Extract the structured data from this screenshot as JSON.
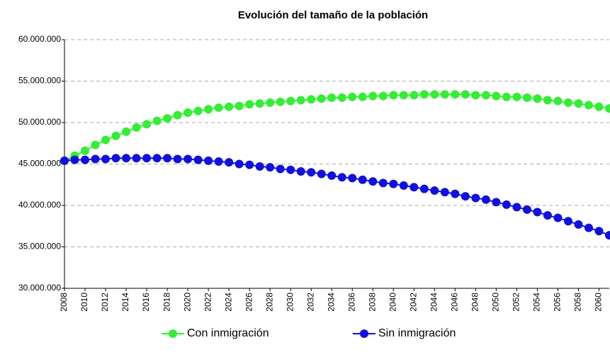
{
  "chart_data": {
    "type": "line",
    "title": "Evolución del tamaño de la población",
    "x": [
      2008,
      2009,
      2010,
      2011,
      2012,
      2013,
      2014,
      2015,
      2016,
      2017,
      2018,
      2019,
      2020,
      2021,
      2022,
      2023,
      2024,
      2025,
      2026,
      2027,
      2028,
      2029,
      2030,
      2031,
      2032,
      2033,
      2034,
      2035,
      2036,
      2037,
      2038,
      2039,
      2040,
      2041,
      2042,
      2043,
      2044,
      2045,
      2046,
      2047,
      2048,
      2049,
      2050,
      2051,
      2052,
      2053,
      2054,
      2055,
      2056,
      2057,
      2058,
      2059,
      2060,
      2061
    ],
    "series": [
      {
        "name": "Con inmigración",
        "color": "#33ee33",
        "values": [
          45400000,
          46000000,
          46600000,
          47300000,
          47900000,
          48400000,
          48900000,
          49400000,
          49800000,
          50200000,
          50500000,
          50900000,
          51200000,
          51400000,
          51600000,
          51800000,
          51900000,
          52000000,
          52200000,
          52300000,
          52400000,
          52500000,
          52600000,
          52700000,
          52800000,
          52900000,
          53000000,
          53000000,
          53100000,
          53100000,
          53200000,
          53200000,
          53300000,
          53300000,
          53300000,
          53400000,
          53400000,
          53400000,
          53400000,
          53400000,
          53300000,
          53300000,
          53200000,
          53100000,
          53100000,
          53000000,
          52900000,
          52700000,
          52600000,
          52400000,
          52300000,
          52100000,
          51900000,
          51700000
        ]
      },
      {
        "name": "Sin inmigración",
        "color": "#1111dd",
        "values": [
          45400000,
          45500000,
          45500000,
          45600000,
          45600000,
          45700000,
          45700000,
          45700000,
          45700000,
          45700000,
          45700000,
          45600000,
          45600000,
          45500000,
          45400000,
          45300000,
          45200000,
          45000000,
          44900000,
          44700000,
          44600000,
          44400000,
          44300000,
          44100000,
          44000000,
          43800000,
          43600000,
          43400000,
          43300000,
          43100000,
          42900000,
          42700000,
          42600000,
          42400000,
          42200000,
          42000000,
          41800000,
          41600000,
          41400000,
          41100000,
          40900000,
          40700000,
          40400000,
          40100000,
          39800000,
          39500000,
          39200000,
          38800000,
          38500000,
          38100000,
          37700000,
          37300000,
          36900000,
          36400000
        ]
      }
    ],
    "xlim": [
      2008,
      2061
    ],
    "xticks": [
      2008,
      2010,
      2012,
      2014,
      2016,
      2018,
      2020,
      2022,
      2024,
      2026,
      2028,
      2030,
      2032,
      2034,
      2036,
      2038,
      2040,
      2042,
      2044,
      2046,
      2048,
      2050,
      2052,
      2054,
      2056,
      2058,
      2060
    ],
    "ylim": [
      30000000,
      60000000
    ],
    "yticks": [
      {
        "value": 30000000,
        "label": "30.000.000"
      },
      {
        "value": 35000000,
        "label": "35.000.000"
      },
      {
        "value": 40000000,
        "label": "40.000.000"
      },
      {
        "value": 45000000,
        "label": "45.000.000"
      },
      {
        "value": 50000000,
        "label": "50.000.000"
      },
      {
        "value": 55000000,
        "label": "55.000.000"
      },
      {
        "value": 60000000,
        "label": "60.000.000"
      }
    ],
    "grid": true,
    "legend": "bottom"
  }
}
